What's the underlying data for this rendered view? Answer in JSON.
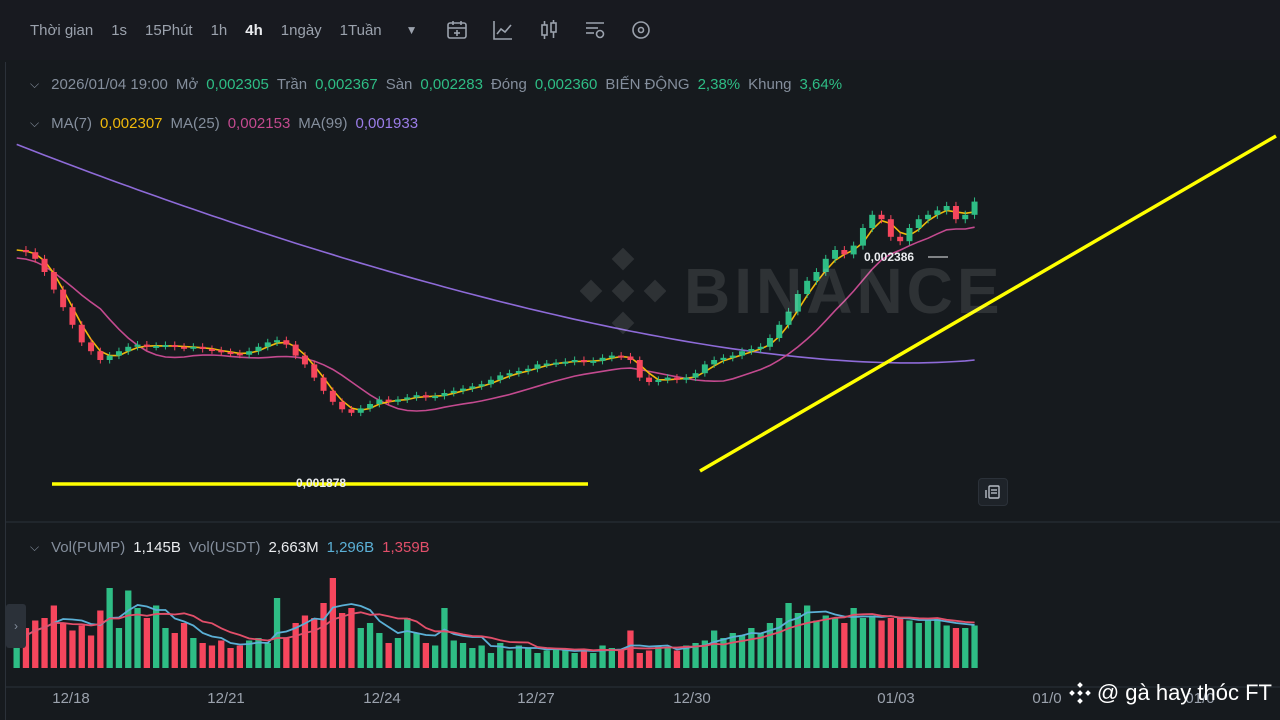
{
  "toolbar": {
    "time_label": "Thời gian",
    "intervals": [
      "1s",
      "15Phút",
      "1h",
      "4h",
      "1ngày",
      "1Tuần"
    ],
    "active_interval": "4h"
  },
  "ohlc": {
    "date": "2026/01/04 19:00",
    "open_label": "Mở",
    "open": "0,002305",
    "high_label": "Trần",
    "high": "0,002367",
    "low_label": "Sàn",
    "low": "0,002283",
    "close_label": "Đóng",
    "close": "0,002360",
    "change_label": "BIẾN ĐỘNG",
    "change": "2,38%",
    "range_label": "Khung",
    "range": "3,64%"
  },
  "ma": {
    "ma7_label": "MA(7)",
    "ma7": "0,002307",
    "ma25_label": "MA(25)",
    "ma25": "0,002153",
    "ma99_label": "MA(99)",
    "ma99": "0,001933"
  },
  "volume": {
    "vol_pump_label": "Vol(PUMP)",
    "vol_pump": "1,145B",
    "vol_usdt_label": "Vol(USDT)",
    "vol_usdt": "2,663M",
    "ma_a": "1,296B",
    "ma_b": "1,359B"
  },
  "watermark": "BINANCE",
  "credit": "@ gà hay thóc FT",
  "colors": {
    "up": "#2ebd85",
    "down": "#f6465d",
    "ma7": "#f0b90b",
    "ma25": "#c34a8f",
    "ma99": "#8e6bd8",
    "annotation": "#ffff00",
    "vol_ma_a": "#5bb0d6",
    "vol_ma_b": "#e24f6a"
  },
  "chart_data": {
    "type": "candlestick",
    "interval": "4h",
    "x_tick_labels": [
      "12/18",
      "12/21",
      "12/24",
      "12/27",
      "12/30",
      "01/03",
      "01/0",
      "01/0"
    ],
    "annotations": {
      "high_price": "0,002386",
      "low_price": "0,001878"
    },
    "price_path": [
      0.00225,
      0.002245,
      0.00223,
      0.0022,
      0.00216,
      0.00212,
      0.00208,
      0.00204,
      0.00202,
      0.002,
      0.00201,
      0.00202,
      0.00203,
      0.002035,
      0.00203,
      0.002032,
      0.002034,
      0.00203,
      0.002028,
      0.00203,
      0.002025,
      0.002022,
      0.002018,
      0.002015,
      0.002012,
      0.00202,
      0.00203,
      0.00204,
      0.002045,
      0.002035,
      0.00201,
      0.00199,
      0.00196,
      0.00193,
      0.001905,
      0.001888,
      0.00188,
      0.00189,
      0.0019,
      0.00191,
      0.001905,
      0.00191,
      0.001915,
      0.00192,
      0.001915,
      0.001918,
      0.001925,
      0.00193,
      0.001935,
      0.00194,
      0.001945,
      0.001955,
      0.001965,
      0.00197,
      0.001975,
      0.00198,
      0.00199,
      0.001992,
      0.001994,
      0.001996,
      0.002,
      0.001995,
      0.001998,
      0.002005,
      0.00201,
      0.002008,
      0.002,
      0.00196,
      0.00195,
      0.001955,
      0.00196,
      0.001955,
      0.00196,
      0.00197,
      0.00199,
      0.002,
      0.002005,
      0.00201,
      0.00202,
      0.002025,
      0.00203,
      0.00205,
      0.00208,
      0.00211,
      0.00215,
      0.00218,
      0.0022,
      0.00223,
      0.00225,
      0.00224,
      0.00226,
      0.0023,
      0.00233,
      0.00232,
      0.00228,
      0.00227,
      0.0023,
      0.00232,
      0.00233,
      0.00234,
      0.00235,
      0.00232,
      0.00233,
      0.00236
    ],
    "volume_values": [
      0.5,
      0.8,
      0.95,
      1.0,
      1.25,
      0.9,
      0.75,
      0.85,
      0.65,
      1.15,
      1.6,
      0.8,
      1.55,
      1.2,
      1.0,
      1.25,
      0.8,
      0.7,
      0.9,
      0.6,
      0.5,
      0.45,
      0.55,
      0.4,
      0.45,
      0.55,
      0.6,
      0.5,
      1.4,
      0.6,
      0.9,
      1.05,
      1.0,
      1.3,
      1.8,
      1.1,
      1.2,
      0.8,
      0.9,
      0.7,
      0.5,
      0.6,
      1.0,
      0.7,
      0.5,
      0.45,
      1.2,
      0.55,
      0.5,
      0.4,
      0.45,
      0.3,
      0.5,
      0.35,
      0.45,
      0.4,
      0.3,
      0.35,
      0.4,
      0.35,
      0.3,
      0.35,
      0.3,
      0.45,
      0.4,
      0.35,
      0.75,
      0.3,
      0.35,
      0.45,
      0.4,
      0.35,
      0.45,
      0.5,
      0.55,
      0.75,
      0.6,
      0.7,
      0.65,
      0.8,
      0.7,
      0.9,
      1.0,
      1.3,
      1.1,
      1.25,
      0.95,
      1.05,
      1.0,
      0.9,
      1.2,
      1.0,
      1.05,
      0.95,
      1.0,
      1.0,
      0.95,
      0.9,
      0.95,
      1.0,
      0.85,
      0.8,
      0.8,
      0.85
    ]
  }
}
